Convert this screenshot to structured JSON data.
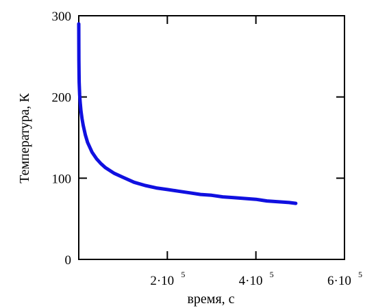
{
  "chart_data": {
    "type": "line",
    "xlabel": "время, с",
    "ylabel": "Температура, К",
    "xlim": [
      0,
      600000
    ],
    "ylim": [
      0,
      300
    ],
    "x_ticks": [
      {
        "value": 200000,
        "mantissa": "2",
        "exponent": "5"
      },
      {
        "value": 400000,
        "mantissa": "4",
        "exponent": "5"
      },
      {
        "value": 600000,
        "mantissa": "6",
        "exponent": "5"
      }
    ],
    "y_ticks": [
      {
        "value": 0,
        "label": "0"
      },
      {
        "value": 100,
        "label": "100"
      },
      {
        "value": 200,
        "label": "200"
      },
      {
        "value": 300,
        "label": "300"
      }
    ],
    "grid": false,
    "series_color": "#1010e0",
    "series": [
      {
        "x": [
          0,
          100,
          300,
          600,
          1000,
          2000,
          3000,
          5000,
          7500,
          10000,
          15000,
          20000,
          30000,
          40000,
          50000,
          60000,
          80000,
          100000,
          125000,
          150000,
          175000,
          200000,
          225000,
          250000,
          275000,
          300000,
          325000,
          350000,
          375000,
          400000,
          425000,
          450000,
          475000,
          490000
        ],
        "y": [
          290,
          265,
          245,
          230,
          218,
          203,
          195,
          183,
          173,
          165,
          153,
          144,
          132,
          124,
          118,
          113,
          106,
          101,
          95,
          91,
          88,
          86,
          84,
          82,
          80,
          79,
          77,
          76,
          75,
          74,
          72,
          71,
          70,
          69
        ]
      }
    ]
  }
}
